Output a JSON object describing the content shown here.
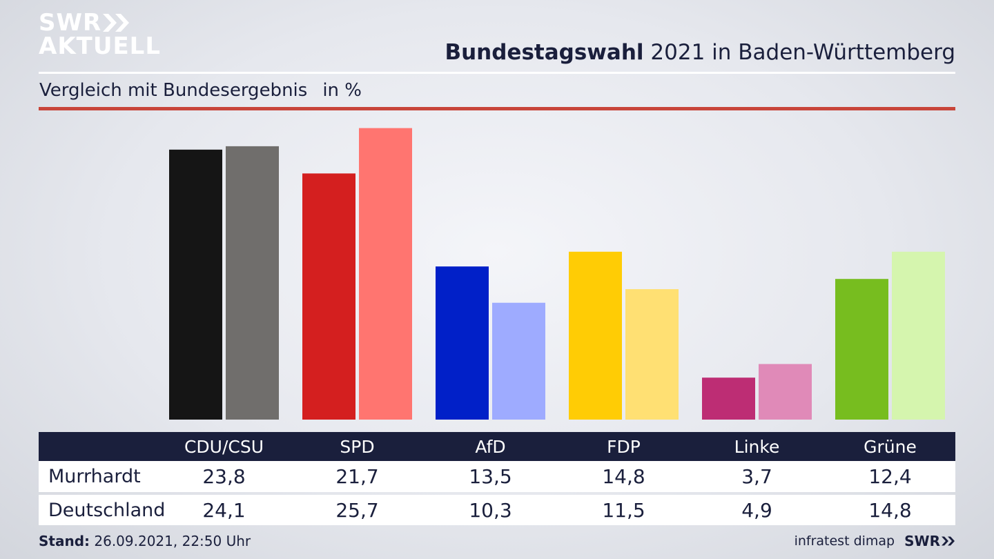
{
  "brand": {
    "line1": "SWR",
    "line2": "AKTUELL"
  },
  "header": {
    "title_bold": "Bundestagswahl",
    "title_rest": " 2021 in Baden-Württemberg"
  },
  "subheader": {
    "text": "Vergleich mit Bundesergebnis",
    "unit": "in %"
  },
  "chart_data": {
    "type": "bar",
    "title": "Bundestagswahl 2021 in Baden-Württemberg",
    "subtitle": "Vergleich mit Bundesergebnis in %",
    "categories": [
      "CDU/CSU",
      "SPD",
      "AfD",
      "FDP",
      "Linke",
      "Grüne"
    ],
    "series": [
      {
        "name": "Murrhardt",
        "values": [
          23.8,
          21.7,
          13.5,
          14.8,
          3.7,
          12.4
        ]
      },
      {
        "name": "Deutschland",
        "values": [
          24.1,
          25.7,
          10.3,
          11.5,
          4.9,
          14.8
        ]
      }
    ],
    "display_values": {
      "Murrhardt": [
        "23,8",
        "21,7",
        "13,5",
        "14,8",
        "3,7",
        "12,4"
      ],
      "Deutschland": [
        "24,1",
        "25,7",
        "10,3",
        "11,5",
        "4,9",
        "14,8"
      ]
    },
    "colors": {
      "Murrhardt": [
        "#151515",
        "#d41f1f",
        "#0120c8",
        "#ffcc05",
        "#bd2d74",
        "#77bd1f"
      ],
      "Deutschland": [
        "#706e6c",
        "#ff7570",
        "#9eabff",
        "#ffe073",
        "#e08ab8",
        "#d5f5ae"
      ]
    },
    "ylim": [
      0,
      27
    ],
    "grid": false,
    "legend": "none"
  },
  "footer": {
    "stand_label": "Stand:",
    "stand_value": " 26.09.2021, 22:50 Uhr",
    "source": "infratest dimap",
    "brand": "SWR"
  }
}
